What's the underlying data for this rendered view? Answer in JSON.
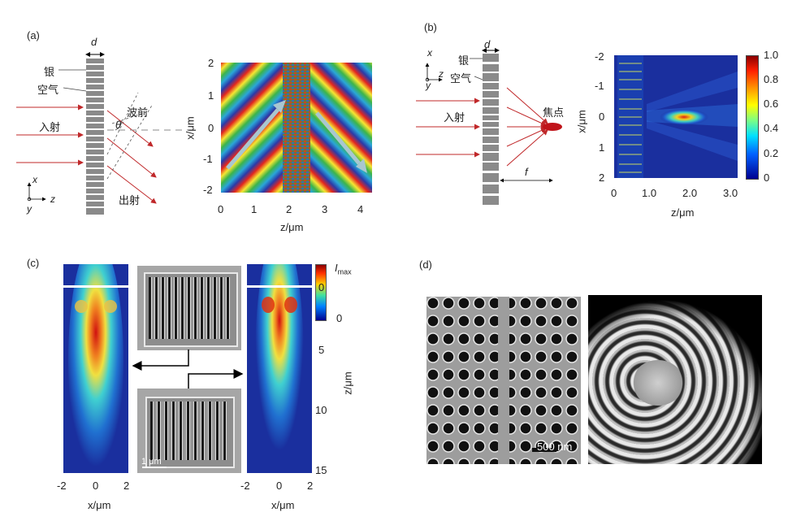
{
  "panels": {
    "a": {
      "tag": "(a)",
      "schematic": {
        "d": "d",
        "silver": "银",
        "air": "空气",
        "wavefront": "波前",
        "incident": "入射",
        "theta": "θ",
        "outgoing": "出射",
        "axis_x": "x",
        "axis_z": "z",
        "axis_y": "y"
      },
      "plot": {
        "xlabel": "z/μm",
        "ylabel": "x/μm",
        "xticks": [
          "0",
          "1",
          "2",
          "3",
          "4"
        ],
        "yticks": [
          "2",
          "1",
          "0",
          "-1",
          "-2"
        ]
      }
    },
    "b": {
      "tag": "(b)",
      "schematic": {
        "d": "d",
        "silver": "银",
        "air": "空气",
        "incident": "入射",
        "focus": "焦点",
        "f": "f",
        "axis_x": "x",
        "axis_z": "z",
        "axis_y": "y"
      },
      "plot": {
        "xlabel": "z/μm",
        "ylabel": "x/μm",
        "xticks": [
          "0",
          "1.0",
          "2.0",
          "3.0"
        ],
        "yticks": [
          "-2",
          "-1",
          "0",
          "1",
          "2"
        ],
        "colorbar_ticks": [
          "1.0",
          "0.8",
          "0.6",
          "0.4",
          "0.2",
          "0"
        ]
      }
    },
    "c": {
      "tag": "(c)",
      "xlabel": "x/μm",
      "xticks": [
        "-2",
        "0",
        "2"
      ],
      "zlabel": "z/μm",
      "zticks": [
        "0",
        "5",
        "10",
        "15"
      ],
      "cbar_max": "I",
      "cbar_max_sub": "max",
      "cbar_min": "0",
      "scalebar": "1 μm"
    },
    "d": {
      "tag": "(d)",
      "scalebar": "500 nm"
    }
  },
  "colors": {
    "red_arrow": "#c0282a",
    "grating_gray": "#8a8a8a",
    "jet_dark": "#0b1f8a",
    "focus_red": "#c0141a"
  }
}
